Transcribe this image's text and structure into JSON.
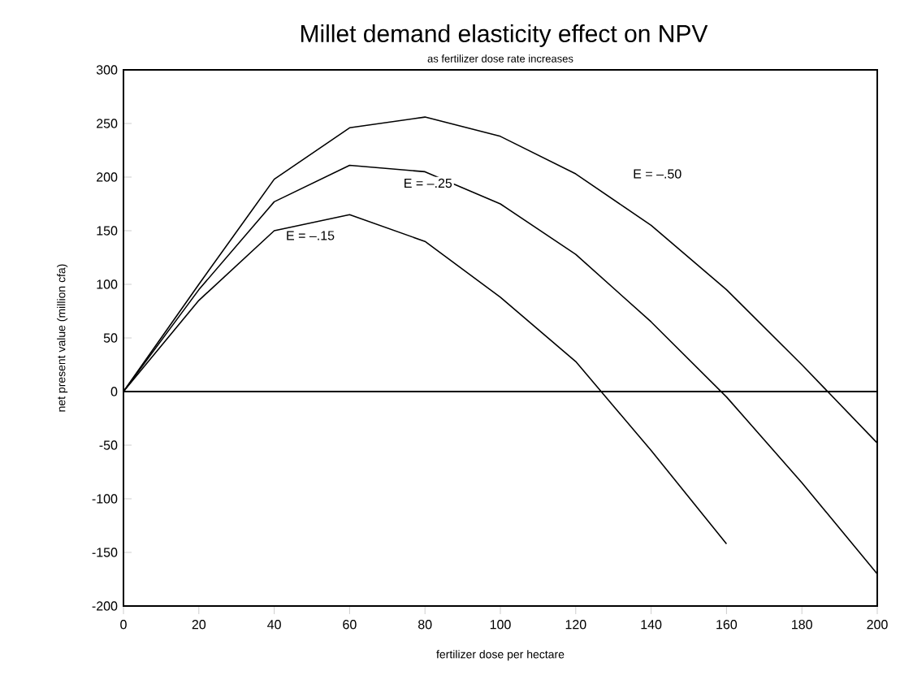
{
  "chart_data": {
    "type": "line",
    "title": "Millet demand elasticity effect on NPV",
    "subtitle": "as fertilizer dose rate increases",
    "xlabel": "fertilizer dose per hectare",
    "ylabel": "net present value (million cfa)",
    "x": [
      0,
      20,
      40,
      60,
      80,
      100,
      120,
      140,
      160,
      180,
      200
    ],
    "series": [
      {
        "name": "E = –.50",
        "color": "#000000",
        "values": [
          0,
          100,
          198,
          246,
          256,
          238,
          203,
          155,
          95,
          25,
          -48
        ]
      },
      {
        "name": "E = –.25",
        "color": "#000000",
        "values": [
          0,
          95,
          177,
          211,
          205,
          175,
          128,
          65,
          -5,
          -85,
          -170
        ]
      },
      {
        "name": "E = –.15",
        "color": "#000000",
        "x": [
          0,
          20,
          40,
          60,
          80,
          100,
          120,
          140,
          160
        ],
        "values": [
          0,
          85,
          150,
          165,
          140,
          88,
          28,
          -55,
          -142
        ]
      }
    ],
    "xlim": [
      0,
      200
    ],
    "ylim": [
      -200,
      300
    ],
    "xticks": [
      0,
      20,
      40,
      60,
      80,
      100,
      120,
      140,
      160,
      180,
      200
    ],
    "yticks": [
      -200,
      -150,
      -100,
      -50,
      0,
      50,
      100,
      150,
      200,
      250,
      300
    ],
    "ref_lines": [
      {
        "axis": "y",
        "value": 0,
        "color": "#000000"
      }
    ]
  }
}
